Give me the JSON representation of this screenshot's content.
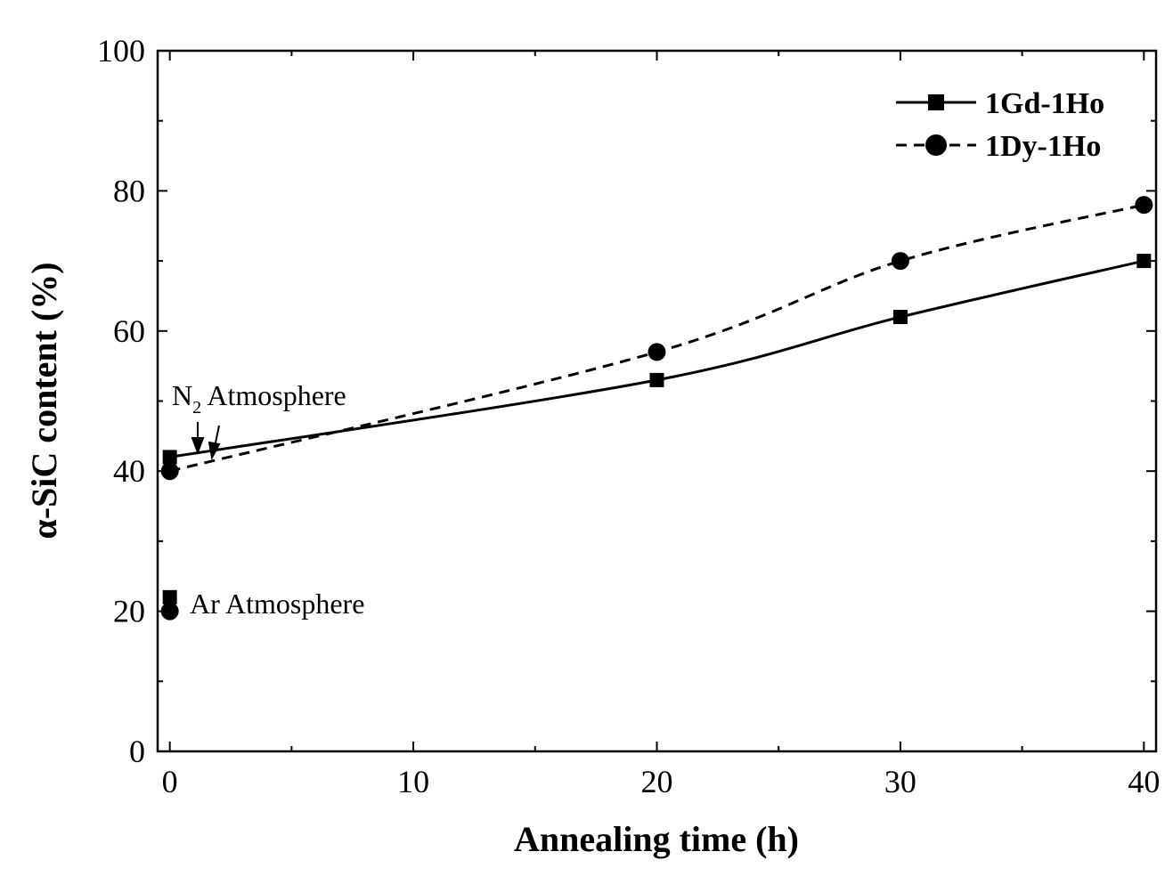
{
  "chart_data": {
    "type": "line",
    "xlabel": "Annealing time (h)",
    "ylabel": "α-SiC content (%)",
    "xlim": [
      -0.5,
      40.5
    ],
    "ylim": [
      0,
      100
    ],
    "x_ticks": [
      0,
      10,
      20,
      30,
      40
    ],
    "y_ticks": [
      0,
      20,
      40,
      60,
      80,
      100
    ],
    "x_minor_ticks": [
      5,
      15,
      25,
      35
    ],
    "y_minor_ticks": [
      10,
      30,
      50,
      70,
      90
    ],
    "grid": false,
    "legend_position": "top-right",
    "series": [
      {
        "name": "1Gd-1Ho",
        "marker": "square",
        "line": "solid",
        "x": [
          0,
          20,
          30,
          40
        ],
        "y": [
          42,
          53,
          62,
          70
        ]
      },
      {
        "name": "1Dy-1Ho",
        "marker": "circle",
        "line": "dashed",
        "x": [
          0,
          20,
          30,
          40
        ],
        "y": [
          40,
          57,
          70,
          78
        ]
      }
    ],
    "extra_points": [
      {
        "series": "1Gd-1Ho",
        "marker": "square",
        "x": 0,
        "y": 22
      },
      {
        "series": "1Dy-1Ho",
        "marker": "circle",
        "x": 0,
        "y": 20
      }
    ],
    "annotations": {
      "n2": {
        "main": "N",
        "sub": "2",
        "rest": " Atmosphere"
      },
      "ar": "Ar Atmosphere"
    }
  }
}
